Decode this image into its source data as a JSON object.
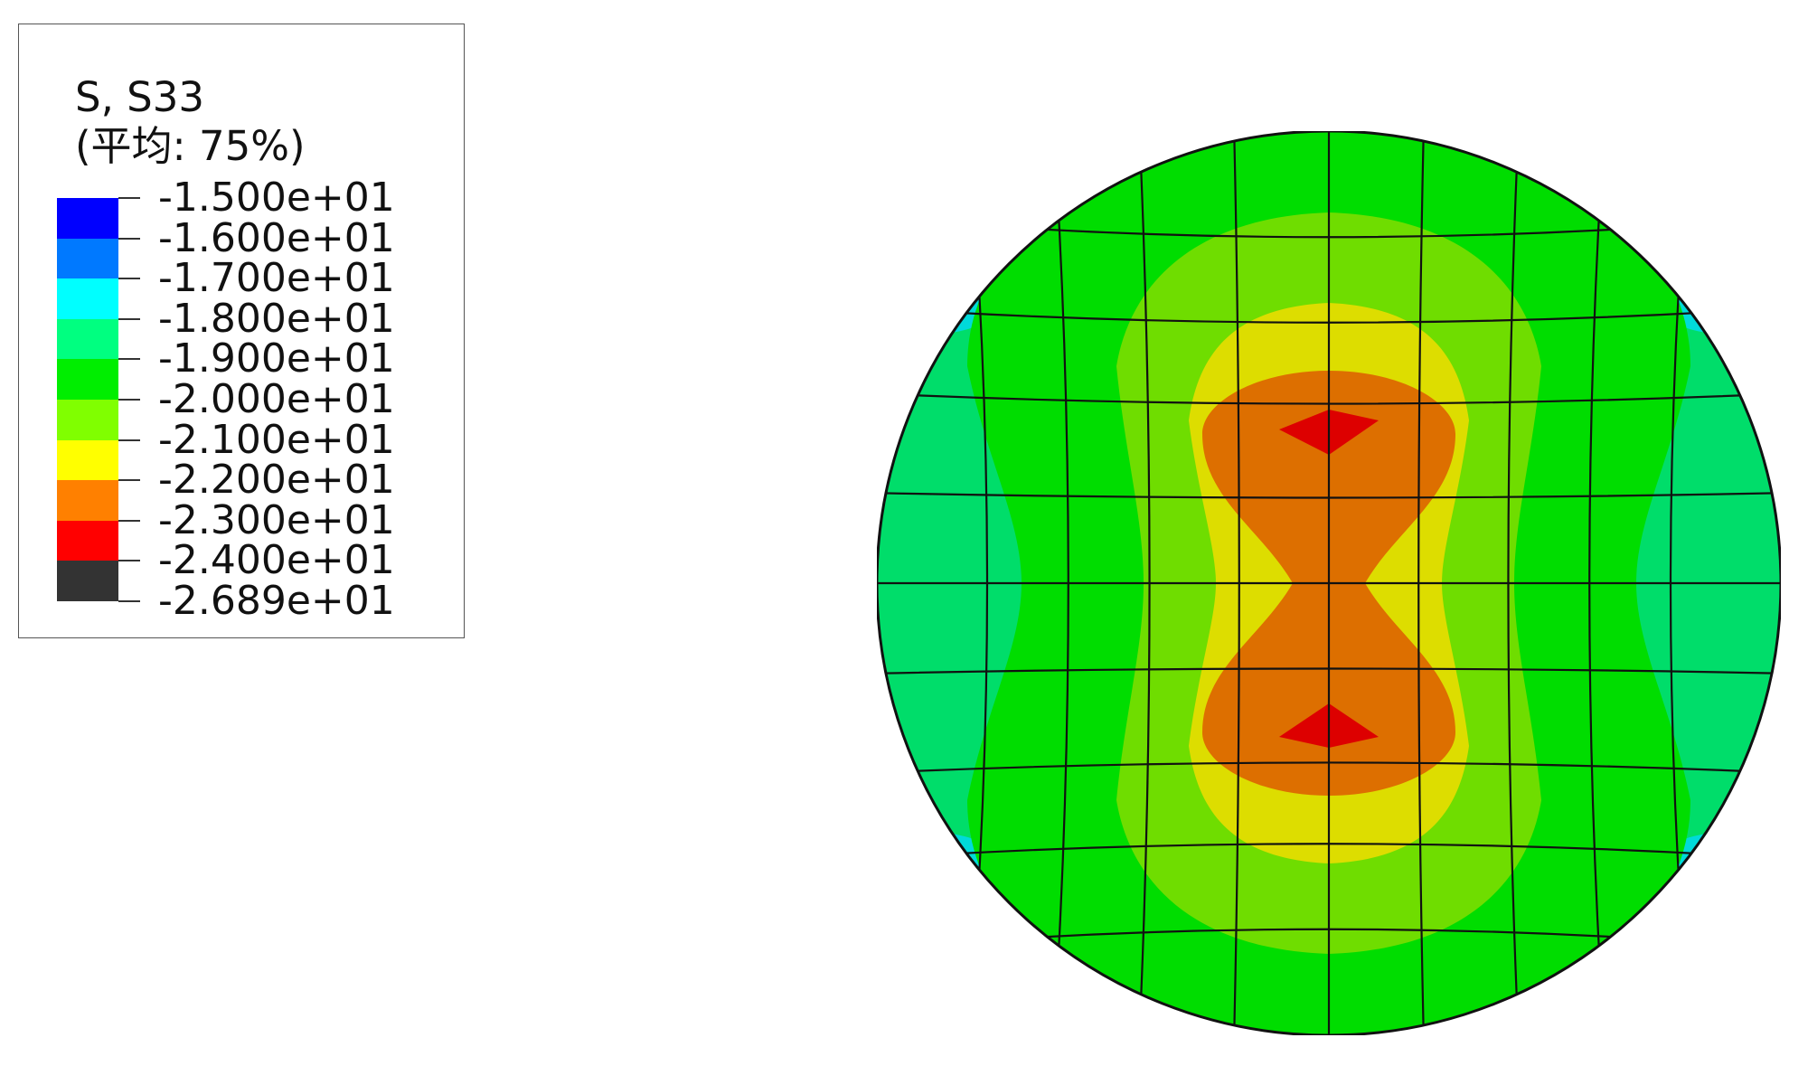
{
  "legend": {
    "title_line1": "S, S33",
    "title_line2": "(平均: 75%)",
    "labels": [
      "-1.500e+01",
      "-1.600e+01",
      "-1.700e+01",
      "-1.800e+01",
      "-1.900e+01",
      "-2.000e+01",
      "-2.100e+01",
      "-2.200e+01",
      "-2.300e+01",
      "-2.400e+01",
      "-2.689e+01"
    ],
    "colors": [
      "#0000ff",
      "#0079ff",
      "#00ffff",
      "#00ff80",
      "#00ee00",
      "#80ff00",
      "#ffff00",
      "#ff8000",
      "#ff0000",
      "#333333"
    ]
  },
  "contour_colors": {
    "outer": "#00dd6a",
    "cyan": "#00dada",
    "green": "#00dd00",
    "light_green": "#6fdd00",
    "yellow": "#dddd00",
    "orange": "#dd6f00",
    "red": "#dd0000"
  },
  "mesh": {
    "line_color": "#111111"
  }
}
